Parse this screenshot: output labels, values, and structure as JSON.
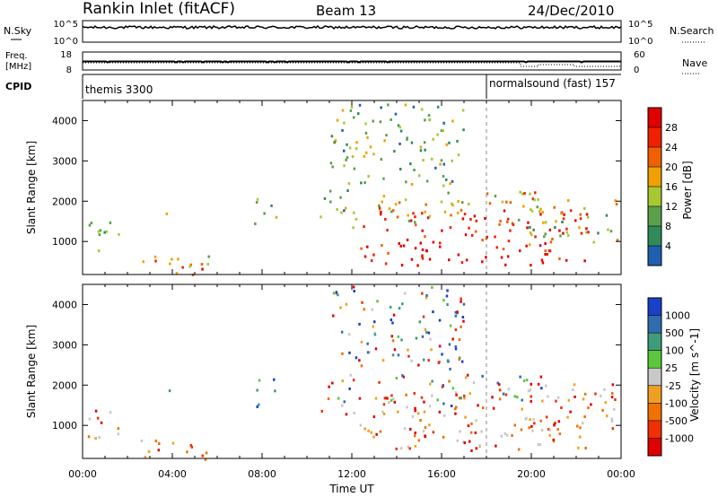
{
  "header": {
    "station": "Rankin Inlet (fitACF)",
    "beam": "Beam 13",
    "date": "24/Dec/2010"
  },
  "nsky_panel": {
    "left_label": "N.Sky",
    "right_label": "N.Search",
    "left_ticks": [
      "10^5",
      "10^0"
    ],
    "right_ticks": [
      "10^5",
      "10^0"
    ]
  },
  "freq_panel": {
    "left_label_top": "Freq.",
    "left_label_bottom": "[MHz]",
    "right_label": "Nave",
    "left_ticks": [
      "18",
      "8"
    ],
    "right_ticks": [
      "60",
      "0"
    ]
  },
  "cpid": {
    "label": "CPID",
    "programs": [
      {
        "name": "themis 3300",
        "start_hour": 0
      },
      {
        "name": "normalsound (fast) 157",
        "start_hour": 18
      }
    ]
  },
  "colors": {
    "power": [
      "#1a00e0",
      "#1f5fb0",
      "#2f8c5a",
      "#5aa04a",
      "#a8c832",
      "#f0a000",
      "#f06000",
      "#f02000",
      "#e00000"
    ],
    "velocity_pos": [
      "#1a3fc8",
      "#2f6db0",
      "#3f9c7a",
      "#5ac83a"
    ],
    "velocity_neg": [
      "#c8c8c8",
      "#f0a020",
      "#f07000",
      "#f03000",
      "#e00000"
    ]
  },
  "chart_data": [
    {
      "type": "heatmap",
      "title": "",
      "xlabel": "",
      "ylabel": "Slant Range [km]",
      "colorbar_label": "Power [dB]",
      "colorbar_ticks": [
        "4",
        "8",
        "12",
        "16",
        "20",
        "24",
        "28"
      ],
      "x_tick_labels": [
        "00:00",
        "04:00",
        "08:00",
        "12:00",
        "16:00",
        "20:00",
        "00:00"
      ],
      "y_tick_labels": [
        "1000",
        "2000",
        "3000",
        "4000"
      ],
      "xlim": [
        0,
        24
      ],
      "ylim": [
        180,
        4500
      ],
      "scatter_regions": [
        {
          "x": [
            0,
            1.6
          ],
          "y": [
            700,
            1500
          ],
          "level": 2
        },
        {
          "x": [
            2.5,
            5.8
          ],
          "y": [
            180,
            700
          ],
          "level": 5
        },
        {
          "x": [
            4.6,
            5.4
          ],
          "y": [
            250,
            500
          ],
          "level": 8
        },
        {
          "x": [
            3.6,
            4.2
          ],
          "y": [
            1700,
            2000
          ],
          "level": 3
        },
        {
          "x": [
            7.6,
            8.6
          ],
          "y": [
            1400,
            2200
          ],
          "level": 3
        },
        {
          "x": [
            10.5,
            12.2
          ],
          "y": [
            1300,
            2300
          ],
          "level": 3
        },
        {
          "x": [
            12.3,
            22.5
          ],
          "y": [
            400,
            1800
          ],
          "level": 8
        },
        {
          "x": [
            13.0,
            20.5
          ],
          "y": [
            1500,
            2300
          ],
          "level": 5
        },
        {
          "x": [
            19.8,
            23.8
          ],
          "y": [
            900,
            2100
          ],
          "level": 4
        },
        {
          "x": [
            11.0,
            17.0
          ],
          "y": [
            2400,
            4500
          ],
          "level": 3
        }
      ]
    },
    {
      "type": "heatmap",
      "title": "",
      "xlabel": "Time UT",
      "ylabel": "Slant Range [km]",
      "colorbar_label": "Velocity [m s^-1]",
      "colorbar_ticks": [
        "1000",
        "500",
        "100",
        "25",
        "-25",
        "-100",
        "-500",
        "-1000"
      ],
      "x_tick_labels": [
        "00:00",
        "04:00",
        "08:00",
        "12:00",
        "16:00",
        "20:00",
        "00:00"
      ],
      "y_tick_labels": [
        "1000",
        "2000",
        "3000",
        "4000"
      ],
      "xlim": [
        0,
        24
      ],
      "ylim": [
        180,
        4500
      ],
      "scatter_regions": [
        {
          "x": [
            0,
            1.6
          ],
          "y": [
            700,
            1500
          ],
          "vel": "neg"
        },
        {
          "x": [
            2.5,
            5.8
          ],
          "y": [
            180,
            700
          ],
          "vel": "neg"
        },
        {
          "x": [
            3.6,
            4.2
          ],
          "y": [
            1700,
            2000
          ],
          "vel": "pos"
        },
        {
          "x": [
            7.6,
            8.6
          ],
          "y": [
            1400,
            2200
          ],
          "vel": "pos"
        },
        {
          "x": [
            10.5,
            12.2
          ],
          "y": [
            1300,
            2300
          ],
          "vel": "mix"
        },
        {
          "x": [
            12.3,
            22.5
          ],
          "y": [
            400,
            1800
          ],
          "vel": "neg"
        },
        {
          "x": [
            13.0,
            20.5
          ],
          "y": [
            1500,
            2300
          ],
          "vel": "mix"
        },
        {
          "x": [
            19.8,
            23.8
          ],
          "y": [
            900,
            2100
          ],
          "vel": "neg"
        },
        {
          "x": [
            11.0,
            17.0
          ],
          "y": [
            2400,
            4500
          ],
          "vel": "mix"
        }
      ]
    }
  ]
}
